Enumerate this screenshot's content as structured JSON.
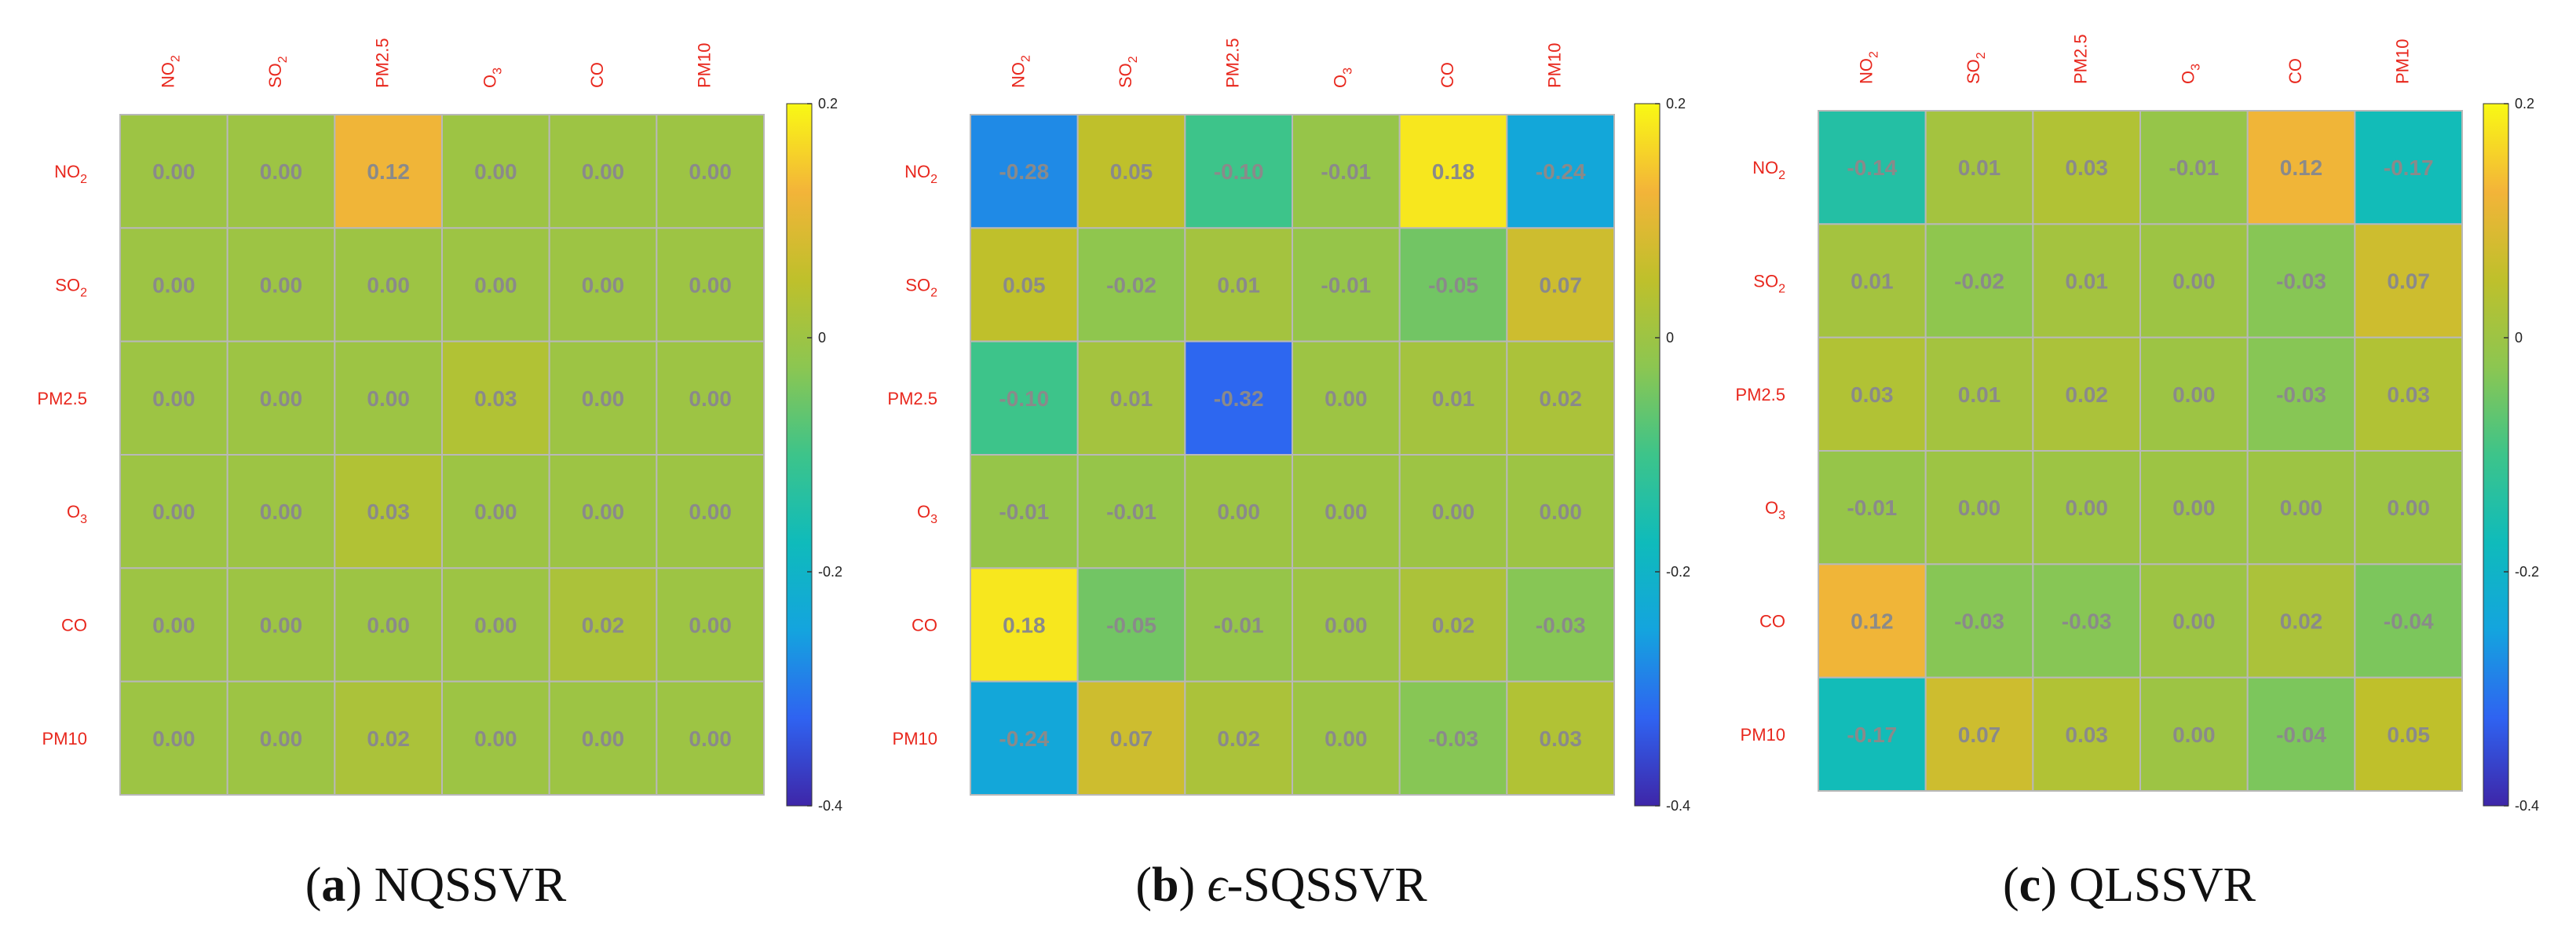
{
  "colors": {
    "label": "#e8271d",
    "value_text": "#8a8a8a",
    "grid": "#b8b8b8",
    "colormap_stops": [
      "#3e26a8",
      "#2f63f1",
      "#14a4de",
      "#0fbbbb",
      "#3dc48a",
      "#8cc651",
      "#bfc02b",
      "#f3b439",
      "#f9f914"
    ]
  },
  "chart_data": [
    {
      "type": "heatmap",
      "panel": "a",
      "caption_label": "a",
      "caption_title": "NQSSVR",
      "caption_symbol": "",
      "caption_suffix": "NQSSVR",
      "x_labels": [
        [
          "NO",
          "2"
        ],
        [
          "SO",
          "2"
        ],
        [
          "PM2.5",
          ""
        ],
        [
          "O",
          "3"
        ],
        [
          "CO",
          ""
        ],
        [
          "PM10",
          ""
        ]
      ],
      "y_labels": [
        [
          "NO",
          "2"
        ],
        [
          "SO",
          "2"
        ],
        [
          "PM2.5",
          ""
        ],
        [
          "O",
          "3"
        ],
        [
          "CO",
          ""
        ],
        [
          "PM10",
          ""
        ]
      ],
      "colorbar": {
        "min": -0.4,
        "max": 0.2,
        "ticks": [
          "0.2",
          "0",
          "-0.2",
          "-0.4"
        ]
      },
      "values": [
        [
          0.0,
          0.0,
          0.12,
          0.0,
          0.0,
          0.0
        ],
        [
          0.0,
          0.0,
          0.0,
          0.0,
          0.0,
          0.0
        ],
        [
          0.0,
          0.0,
          0.0,
          0.03,
          0.0,
          0.0
        ],
        [
          0.0,
          0.0,
          0.03,
          0.0,
          0.0,
          0.0
        ],
        [
          0.0,
          0.0,
          0.0,
          0.0,
          0.02,
          0.0
        ],
        [
          0.0,
          0.0,
          0.02,
          0.0,
          0.0,
          0.0
        ]
      ]
    },
    {
      "type": "heatmap",
      "panel": "b",
      "caption_label": "b",
      "caption_title": "ϵ-SQSSVR",
      "caption_symbol": "ϵ",
      "caption_suffix": "-SQSSVR",
      "x_labels": [
        [
          "NO",
          "2"
        ],
        [
          "SO",
          "2"
        ],
        [
          "PM2.5",
          ""
        ],
        [
          "O",
          "3"
        ],
        [
          "CO",
          ""
        ],
        [
          "PM10",
          ""
        ]
      ],
      "y_labels": [
        [
          "NO",
          "2"
        ],
        [
          "SO",
          "2"
        ],
        [
          "PM2.5",
          ""
        ],
        [
          "O",
          "3"
        ],
        [
          "CO",
          ""
        ],
        [
          "PM10",
          ""
        ]
      ],
      "colorbar": {
        "min": -0.4,
        "max": 0.2,
        "ticks": [
          "0.2",
          "0",
          "-0.2",
          "-0.4"
        ]
      },
      "values": [
        [
          -0.28,
          0.05,
          -0.1,
          -0.01,
          0.18,
          -0.24
        ],
        [
          0.05,
          -0.02,
          0.01,
          -0.01,
          -0.05,
          0.07
        ],
        [
          -0.1,
          0.01,
          -0.32,
          0.0,
          0.01,
          0.02
        ],
        [
          -0.01,
          -0.01,
          0.0,
          0.0,
          0.0,
          0.0
        ],
        [
          0.18,
          -0.05,
          -0.01,
          0.0,
          0.02,
          -0.03
        ],
        [
          -0.24,
          0.07,
          0.02,
          0.0,
          -0.03,
          0.03
        ]
      ]
    },
    {
      "type": "heatmap",
      "panel": "c",
      "caption_label": "c",
      "caption_title": "QLSSVR",
      "caption_symbol": "",
      "caption_suffix": "QLSSVR",
      "x_labels": [
        [
          "NO",
          "2"
        ],
        [
          "SO",
          "2"
        ],
        [
          "PM2.5",
          ""
        ],
        [
          "O",
          "3"
        ],
        [
          "CO",
          ""
        ],
        [
          "PM10",
          ""
        ]
      ],
      "y_labels": [
        [
          "NO",
          "2"
        ],
        [
          "SO",
          "2"
        ],
        [
          "PM2.5",
          ""
        ],
        [
          "O",
          "3"
        ],
        [
          "CO",
          ""
        ],
        [
          "PM10",
          ""
        ]
      ],
      "colorbar": {
        "min": -0.4,
        "max": 0.2,
        "ticks": [
          "0.2",
          "0",
          "-0.2",
          "-0.4"
        ]
      },
      "values": [
        [
          -0.14,
          0.01,
          0.03,
          -0.01,
          0.12,
          -0.17
        ],
        [
          0.01,
          -0.02,
          0.01,
          0.0,
          -0.03,
          0.07
        ],
        [
          0.03,
          0.01,
          0.02,
          0.0,
          -0.03,
          0.03
        ],
        [
          -0.01,
          0.0,
          0.0,
          0.0,
          0.0,
          0.0
        ],
        [
          0.12,
          -0.03,
          -0.03,
          0.0,
          0.02,
          -0.04
        ],
        [
          -0.17,
          0.07,
          0.03,
          0.0,
          -0.04,
          0.05
        ]
      ]
    }
  ]
}
